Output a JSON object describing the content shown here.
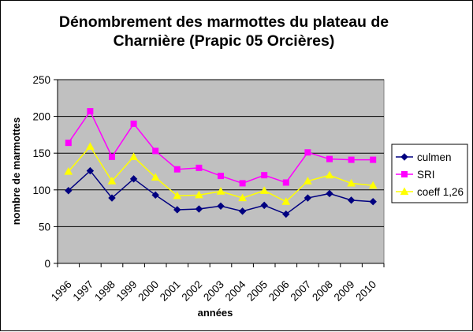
{
  "chart_data": {
    "type": "line",
    "title_lines": [
      "Dénombrement des marmottes du plateau de",
      "Charnière (Prapic 05 Orcières)"
    ],
    "xlabel": "années",
    "ylabel": "nombre de marmottes",
    "categories": [
      "1996",
      "1997",
      "1998",
      "1999",
      "2000",
      "2001",
      "2002",
      "2003",
      "2004",
      "2005",
      "2006",
      "2007",
      "2008",
      "2009",
      "2010"
    ],
    "yticks": [
      "0",
      "50",
      "100",
      "150",
      "200",
      "250"
    ],
    "ylim": [
      0,
      250
    ],
    "grid": true,
    "legend_position": "right",
    "plot_background": "#c0c0c0",
    "series": [
      {
        "name": "culmen",
        "color": "#000080",
        "marker": "diamond",
        "values": [
          99,
          126,
          89,
          115,
          93,
          73,
          74,
          78,
          71,
          79,
          67,
          89,
          95,
          86,
          84
        ]
      },
      {
        "name": "SRI",
        "color": "#ff00ff",
        "marker": "square",
        "values": [
          164,
          207,
          145,
          190,
          153,
          128,
          130,
          119,
          109,
          120,
          110,
          151,
          142,
          141,
          141
        ]
      },
      {
        "name": "coeff 1,26",
        "color": "#ffff00",
        "marker": "triangle",
        "values": [
          125,
          159,
          112,
          145,
          117,
          92,
          93,
          98,
          89,
          99,
          84,
          112,
          120,
          109,
          106
        ]
      }
    ]
  }
}
